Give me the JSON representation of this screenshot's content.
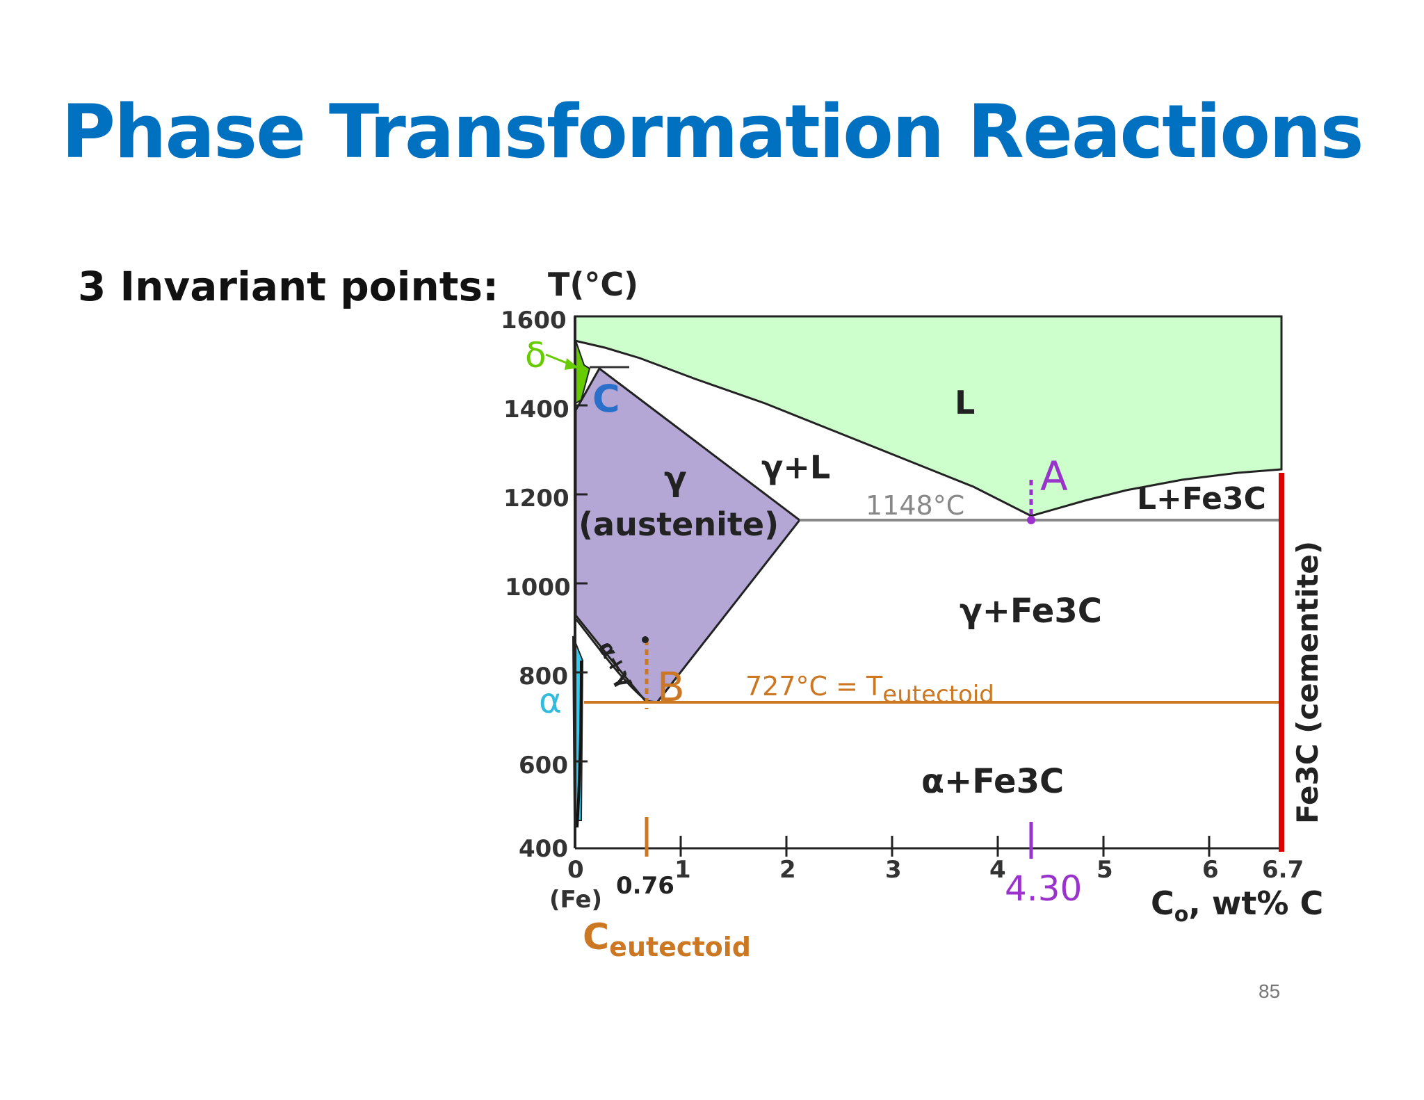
{
  "slide": {
    "title": "Phase Transformation Reactions",
    "subtitle": "3 Invariant points:",
    "page_number": "85"
  },
  "diagram": {
    "y_axis_label": "T(°C)",
    "y_ticks": [
      "1600",
      "1400",
      "1200",
      "1000",
      "800",
      "600",
      "400"
    ],
    "x_ticks": [
      "0",
      "1",
      "2",
      "3",
      "4",
      "5",
      "6",
      "6.7"
    ],
    "x_sub_label": "(Fe)",
    "x_axis_label_main": "C",
    "x_axis_label_sub": "o",
    "x_axis_label_rest": ", wt% C",
    "regions": {
      "liquid": "L",
      "gamma_liquid": "γ+L",
      "gamma": "γ",
      "austenite": "(austenite)",
      "l_fe3c": "L+Fe3C",
      "gamma_fe3c": "γ+Fe3C",
      "alpha_fe3c": "α+Fe3C",
      "alpha_gamma": "α+γ",
      "alpha": "α",
      "delta": "δ",
      "cementite": "Fe3C (cementite)"
    },
    "points": {
      "A": "A",
      "B": "B",
      "C": "C"
    },
    "annotations": {
      "eutectic_temp": "1148°C",
      "eutectoid_temp_prefix": "727°C = T",
      "eutectoid_temp_sub": "eutectoid",
      "eutectoid_comp": "0.76",
      "eutectic_comp": "4.30",
      "c_eutectoid_main": "C",
      "c_eutectoid_sub": "eutectoid"
    },
    "colors": {
      "title": "#0070c0",
      "liquid_fill": "#ccffcc",
      "austenite_fill": "#b4a7d6",
      "delta_fill": "#66cc00",
      "alpha_fill": "#33ccee",
      "eutectoid_line": "#cc7722",
      "eutectic_marker": "#9933cc",
      "cementite_line": "#dd0000",
      "eutectoid_comp_label": "#ffbb00"
    }
  }
}
